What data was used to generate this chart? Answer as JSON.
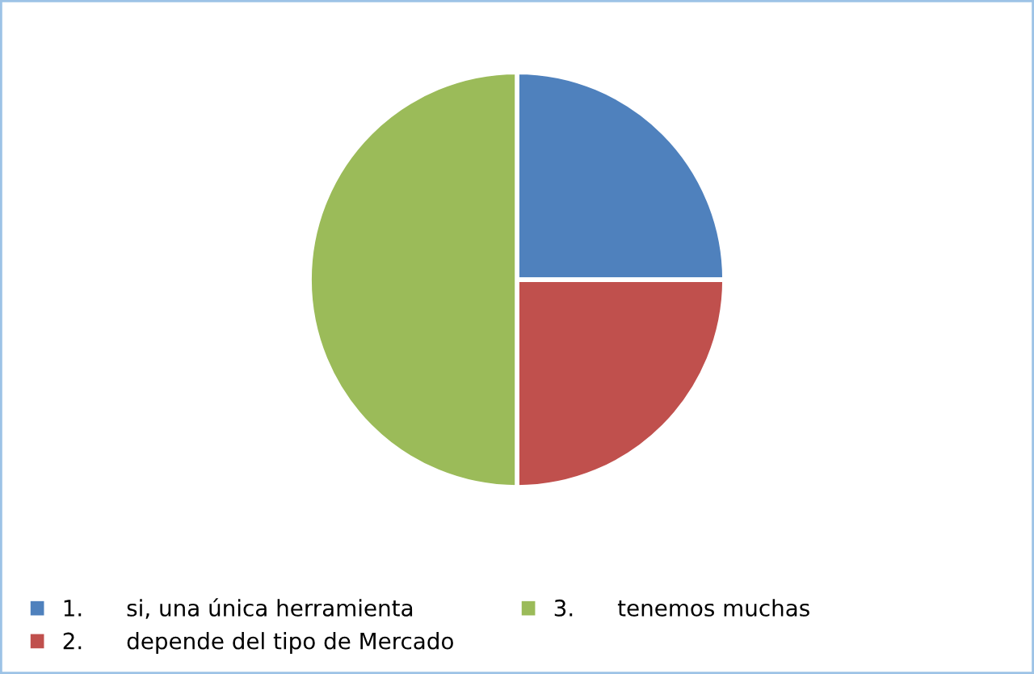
{
  "chart_data": {
    "type": "pie",
    "categories": [
      "1.      si, una única herramienta",
      "2.      depende del tipo de Mercado",
      "3.      tenemos muchas"
    ],
    "values": [
      25,
      25,
      50
    ],
    "colors": [
      "#4f81bd",
      "#c0504d",
      "#9bbb59"
    ],
    "legend": "bottom"
  }
}
